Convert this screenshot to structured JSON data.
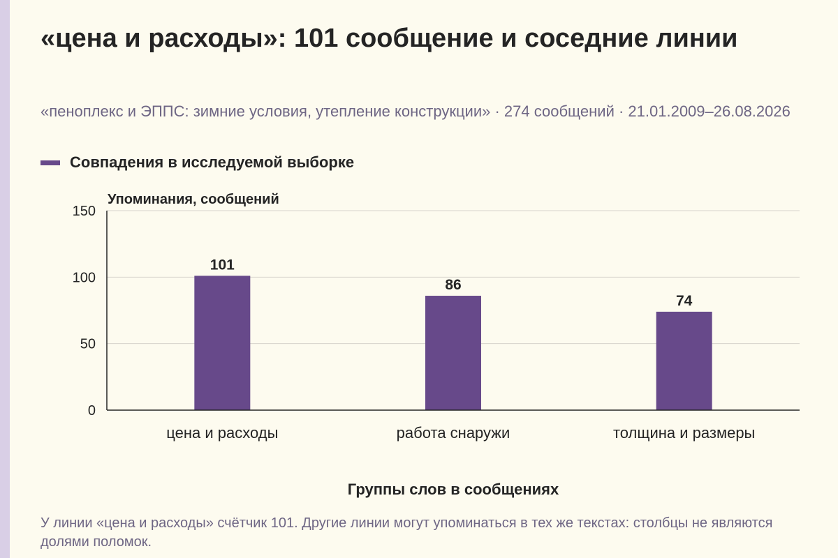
{
  "title": "«цена и расходы»: 101 сообщение и соседние линии",
  "subtitle": "«пеноплекс и ЭППС: зимние условия, утепление конструкции» · 274 сообщений · 21.01.2009–26.08.2026",
  "legend": {
    "label": "Совпадения в исследуемой выборке",
    "color": "#67498a"
  },
  "footnote": "У линии «цена и расходы» счётчик 101. Другие линии могут упоминаться в тех же текстах: столбцы не являются долями поломок.",
  "colors": {
    "background": "#fdfbef",
    "bar": "#67498a",
    "grid": "#d6d3cc",
    "stripe": "#d9cfe6"
  },
  "chart_data": {
    "type": "bar",
    "categories": [
      "цена и расходы",
      "работа снаружи",
      "толщина и размеры"
    ],
    "series": [
      {
        "name": "Совпадения в исследуемой выборке",
        "values": [
          101,
          86,
          74
        ]
      }
    ],
    "ylabel": "Упоминания, сообщений",
    "xlabel": "Группы слов в сообщениях",
    "ylim": [
      0,
      150
    ],
    "yticks": [
      0,
      50,
      100,
      150
    ],
    "grid": true,
    "legend_position": "top-left"
  }
}
